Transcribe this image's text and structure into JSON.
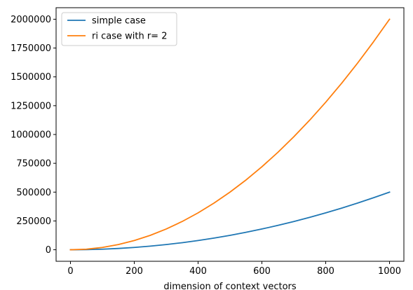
{
  "chart_data": {
    "type": "line",
    "title": "",
    "xlabel": "dimension of context vectors",
    "ylabel": "",
    "xlim": [
      -45,
      1045
    ],
    "ylim": [
      -100000,
      2100000
    ],
    "xticks": [
      0,
      200,
      400,
      600,
      800,
      1000
    ],
    "xtick_labels": [
      "0",
      "200",
      "400",
      "600",
      "800",
      "1000"
    ],
    "yticks": [
      0,
      250000,
      500000,
      750000,
      1000000,
      1250000,
      1500000,
      1750000,
      2000000
    ],
    "ytick_labels": [
      "0",
      "250000",
      "500000",
      "750000",
      "1000000",
      "1250000",
      "1500000",
      "1750000",
      "2000000"
    ],
    "grid": false,
    "legend_position": "top-left",
    "x": [
      0,
      50,
      100,
      150,
      200,
      250,
      300,
      350,
      400,
      450,
      500,
      550,
      600,
      650,
      700,
      750,
      800,
      850,
      900,
      950,
      1000
    ],
    "series": [
      {
        "name": "simple case",
        "color": "#1f77b4",
        "values": [
          0,
          1250,
          5000,
          11250,
          20000,
          31250,
          45000,
          61250,
          80000,
          101250,
          125000,
          151250,
          180000,
          211250,
          245000,
          281250,
          320000,
          361250,
          405000,
          451250,
          500000
        ]
      },
      {
        "name": "ri case with r= 2",
        "color": "#ff7f0e",
        "values": [
          0,
          5000,
          20000,
          45000,
          80000,
          125000,
          180000,
          245000,
          320000,
          405000,
          500000,
          605000,
          720000,
          845000,
          980000,
          1125000,
          1280000,
          1445000,
          1620000,
          1805000,
          2000000
        ]
      }
    ]
  }
}
